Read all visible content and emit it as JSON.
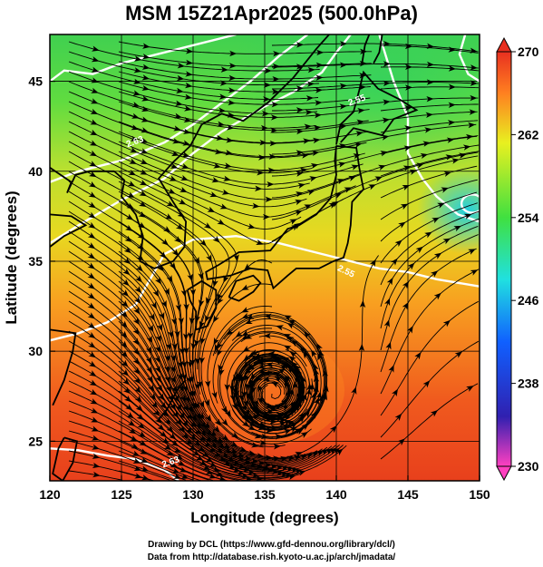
{
  "title": "MSM 15Z21Apr2025 (500.0hPa)",
  "xlabel": "Longitude (degrees)",
  "ylabel": "Latitude  (degrees)",
  "x_ticks": [
    "120",
    "125",
    "130",
    "135",
    "140",
    "145",
    "150"
  ],
  "y_ticks": [
    "25",
    "30",
    "35",
    "40",
    "45"
  ],
  "colorbar": {
    "ticks": [
      "270",
      "262",
      "254",
      "246",
      "238",
      "230"
    ],
    "range": [
      230,
      270
    ],
    "gradient": [
      "#ff40c0",
      "#3020b0",
      "#1060ff",
      "#20e0e0",
      "#40e040",
      "#e8f020",
      "#ff8020",
      "#e83020"
    ]
  },
  "credits": {
    "line1": "Drawing by DCL (https://www.gfd-dennou.org/library/dcl/)",
    "line2": "Data from http://database.rish.kyoto-u.ac.jp/arch/jmadata/"
  },
  "map": {
    "lon_range": [
      120,
      150
    ],
    "lat_range": [
      22.8,
      47.6
    ],
    "low_center": {
      "lon": 135.6,
      "lat": 27.6
    },
    "contour_labels": [
      "2.63",
      "2.55",
      "2.55",
      "2.63"
    ],
    "colors": {
      "contour": "#ffffff",
      "streamline": "#000000",
      "coast": "#000000"
    }
  }
}
